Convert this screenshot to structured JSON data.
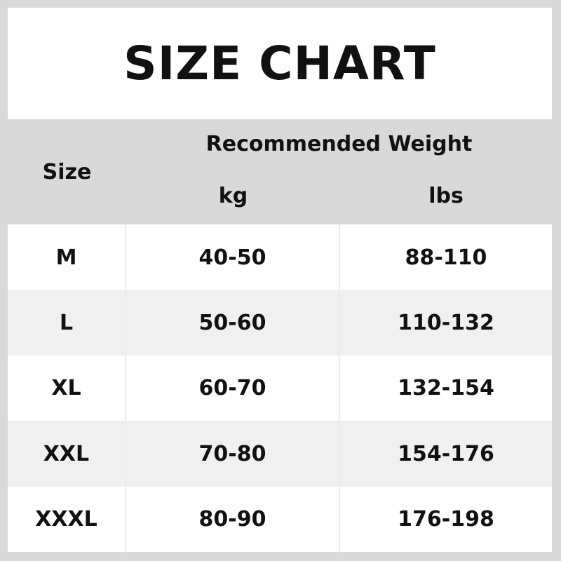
{
  "title": "SIZE CHART",
  "header": {
    "size": "Size",
    "recommended": "Recommended Weight",
    "kg": "kg",
    "lbs": "lbs"
  },
  "rows": [
    {
      "size": "M",
      "kg": "40-50",
      "lbs": "88-110"
    },
    {
      "size": "L",
      "kg": "50-60",
      "lbs": "110-132"
    },
    {
      "size": "XL",
      "kg": "60-70",
      "lbs": "132-154"
    },
    {
      "size": "XXL",
      "kg": "70-80",
      "lbs": "154-176"
    },
    {
      "size": "XXXL",
      "kg": "80-90",
      "lbs": "176-198"
    }
  ],
  "colors": {
    "header_bg": "#d9d9d9",
    "alt_row_bg": "#f0f0f0",
    "frame": "#d9d9d9"
  }
}
